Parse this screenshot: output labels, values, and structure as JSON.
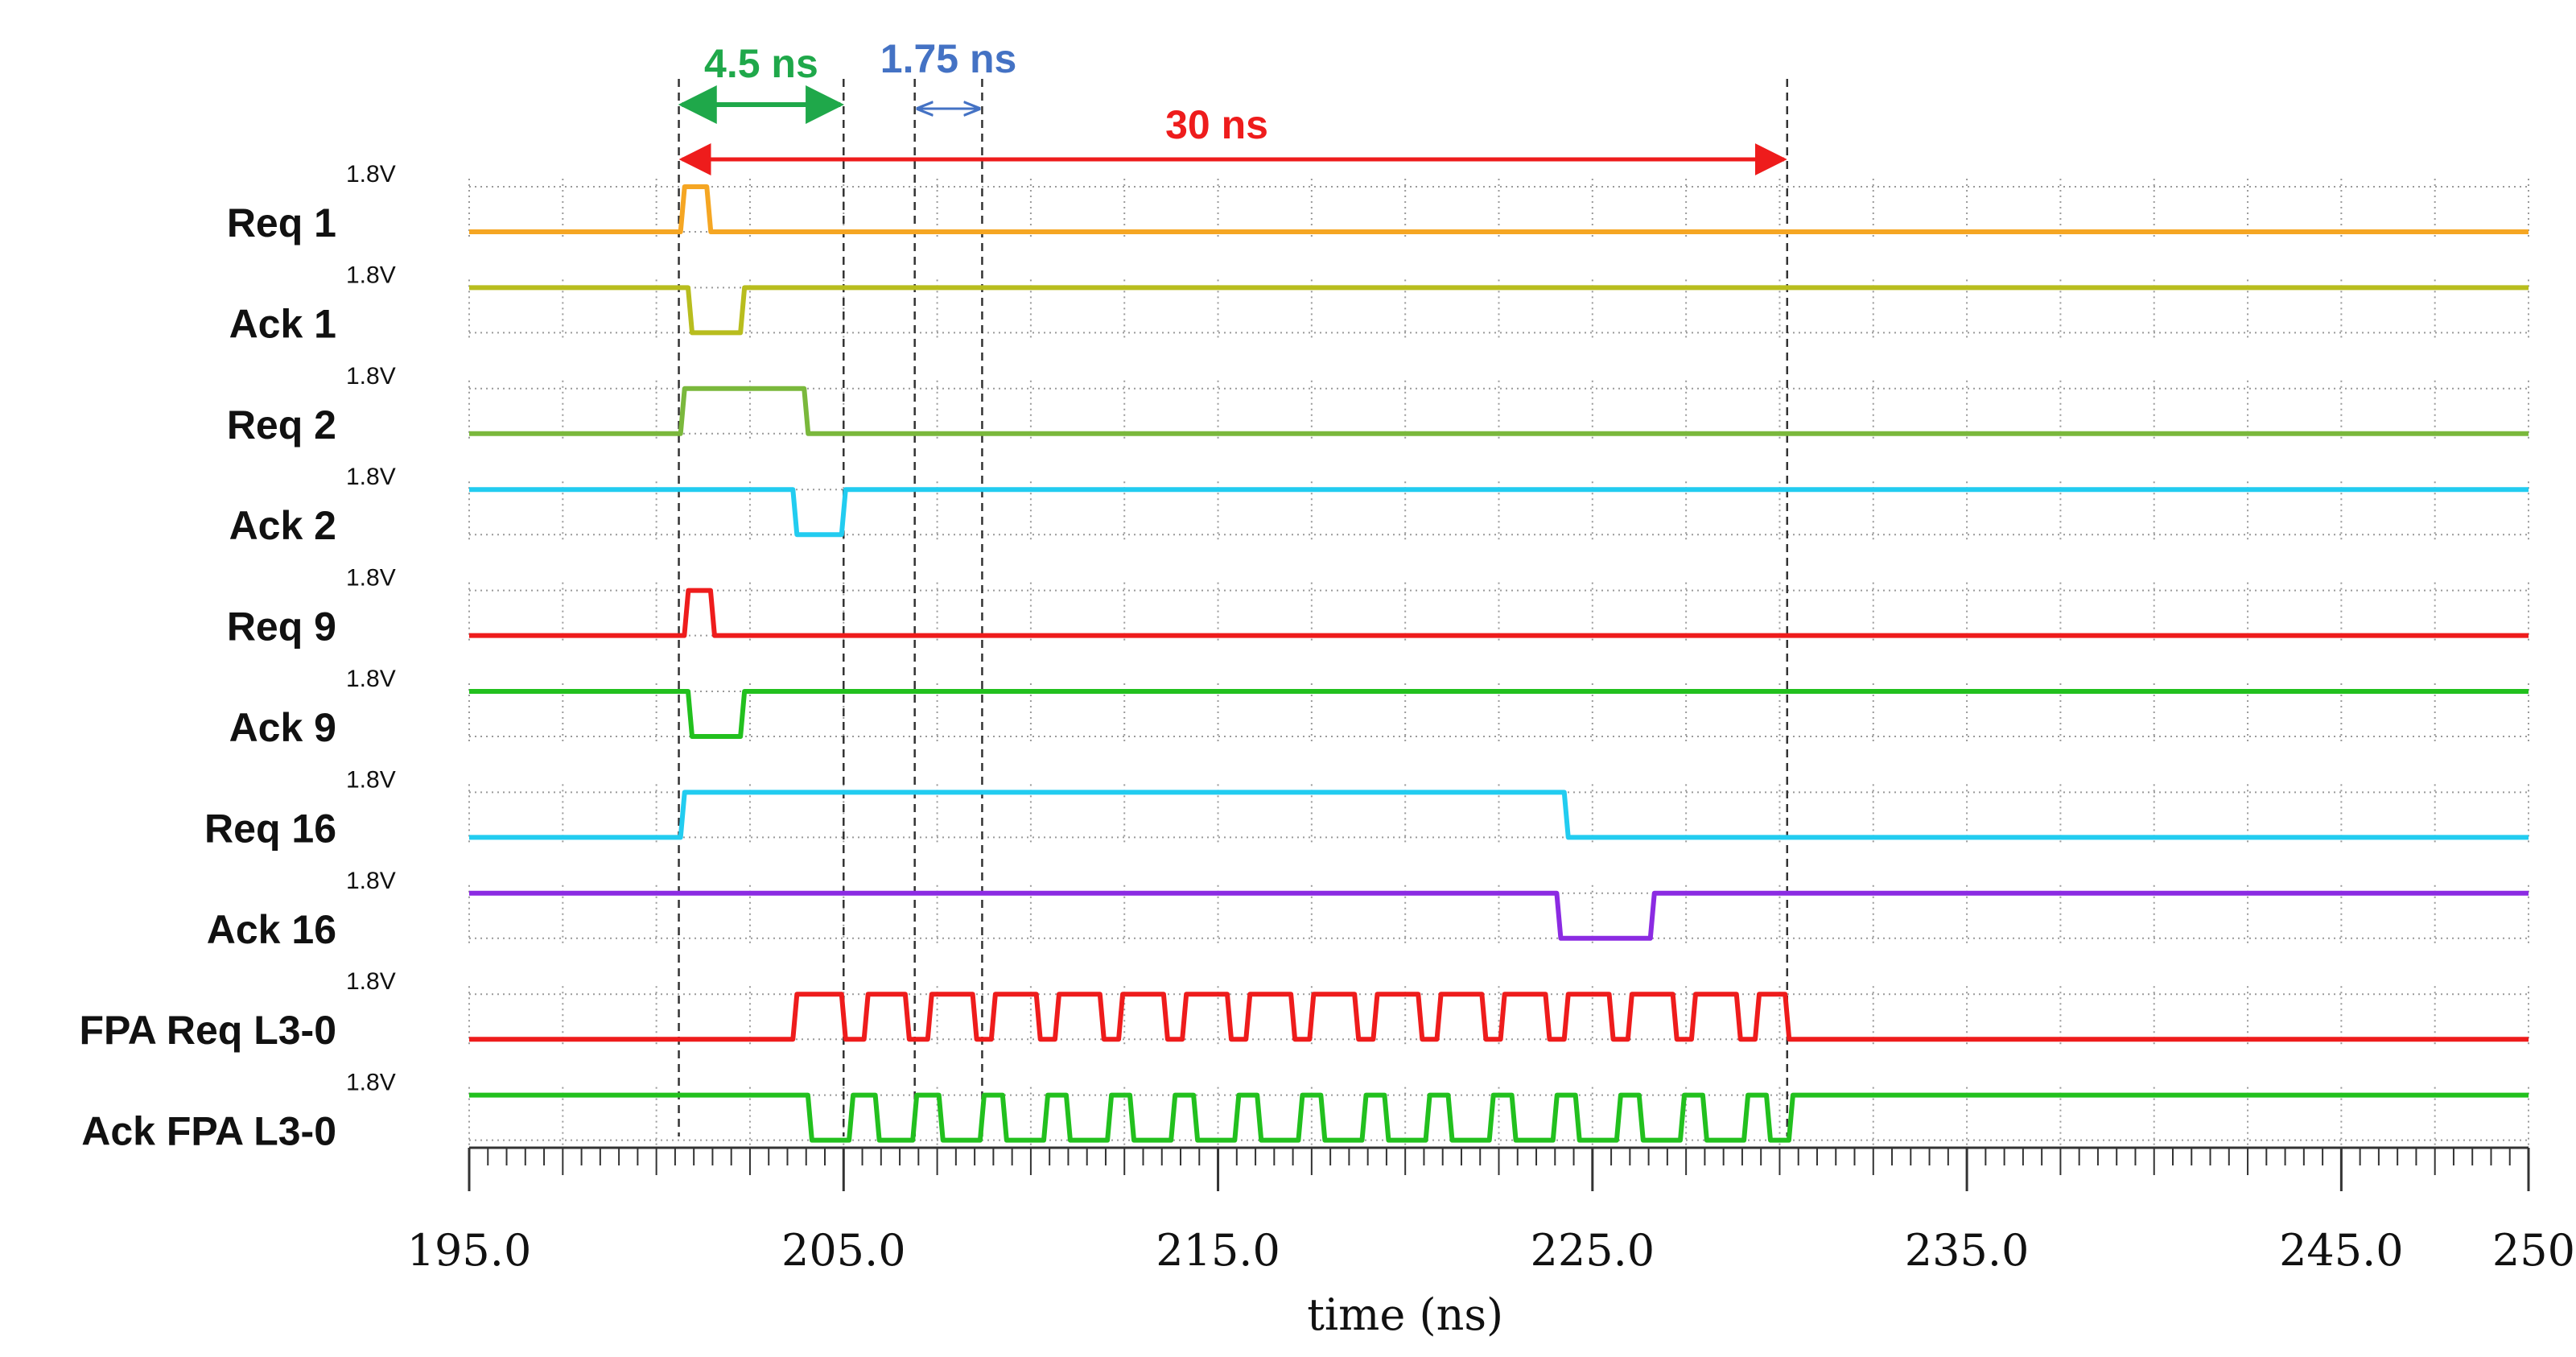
{
  "chart_data": {
    "type": "line",
    "title": "",
    "xlabel": "time (ns)",
    "ylabel": "",
    "xlim": [
      195.0,
      250.0
    ],
    "x_ticks": [
      "195.0",
      "205.0",
      "215.0",
      "225.0",
      "235.0",
      "245.0",
      "250"
    ],
    "x_tick_values": [
      195,
      205,
      215,
      225,
      235,
      245,
      250
    ],
    "grid": true,
    "legend": "none",
    "series": [
      {
        "name": "Req 1",
        "voltage": "1.8V",
        "color": "#f5a623",
        "idle": "low",
        "transitions": [
          200.7,
          201.4
        ]
      },
      {
        "name": "Ack 1",
        "voltage": "1.8V",
        "color": "#b8bd1e",
        "idle": "high",
        "transitions": [
          200.9,
          202.3
        ]
      },
      {
        "name": "Req 2",
        "voltage": "1.8V",
        "color": "#7ab83c",
        "idle": "low",
        "transitions": [
          200.7,
          204.0
        ]
      },
      {
        "name": "Ack 2",
        "voltage": "1.8V",
        "color": "#22ccf0",
        "idle": "high",
        "transitions": [
          203.7,
          205.0
        ]
      },
      {
        "name": "Req 9",
        "voltage": "1.8V",
        "color": "#ee1c1c",
        "idle": "low",
        "transitions": [
          200.8,
          201.5
        ]
      },
      {
        "name": "Ack 9",
        "voltage": "1.8V",
        "color": "#22c01e",
        "idle": "high",
        "transitions": [
          200.9,
          202.3
        ]
      },
      {
        "name": "Req 16",
        "voltage": "1.8V",
        "color": "#22ccf0",
        "idle": "low",
        "transitions": [
          200.7,
          224.3
        ]
      },
      {
        "name": "Ack 16",
        "voltage": "1.8V",
        "color": "#8b2be2",
        "idle": "high",
        "transitions": [
          224.1,
          226.6
        ]
      },
      {
        "name": "FPA Req L3-0",
        "voltage": "1.8V",
        "color": "#ee1c1c",
        "idle": "low",
        "transitions": [
          203.7,
          205.0,
          205.6,
          206.7,
          207.3,
          208.5,
          209.0,
          210.2,
          210.7,
          211.9,
          212.4,
          213.6,
          214.1,
          215.3,
          215.8,
          217.0,
          217.5,
          218.7,
          219.2,
          220.4,
          220.9,
          222.1,
          222.6,
          223.8,
          224.3,
          225.5,
          226.0,
          227.2,
          227.7,
          228.9,
          229.4,
          230.2
        ]
      },
      {
        "name": "Ack FPA L3-0",
        "voltage": "1.8V",
        "color": "#22c01e",
        "idle": "high",
        "transitions": [
          204.1,
          205.2,
          205.9,
          206.9,
          207.6,
          208.7,
          209.3,
          210.4,
          211.0,
          212.1,
          212.7,
          213.8,
          214.4,
          215.5,
          216.1,
          217.2,
          217.8,
          218.9,
          219.5,
          220.6,
          221.2,
          222.3,
          222.9,
          224.0,
          224.6,
          225.7,
          226.3,
          227.4,
          228.0,
          229.1,
          229.7,
          230.3
        ]
      }
    ],
    "markers": [
      200.6,
      205.0,
      206.9,
      208.7,
      230.2
    ],
    "measurements": [
      {
        "label": "4.5 ns",
        "from": 200.6,
        "to": 205.0,
        "color": "#1fa84a"
      },
      {
        "label": "1.75 ns",
        "from": 206.9,
        "to": 208.7,
        "color": "#4472c4"
      },
      {
        "label": "30 ns",
        "from": 200.6,
        "to": 230.2,
        "color": "#ee1c1c"
      }
    ]
  }
}
